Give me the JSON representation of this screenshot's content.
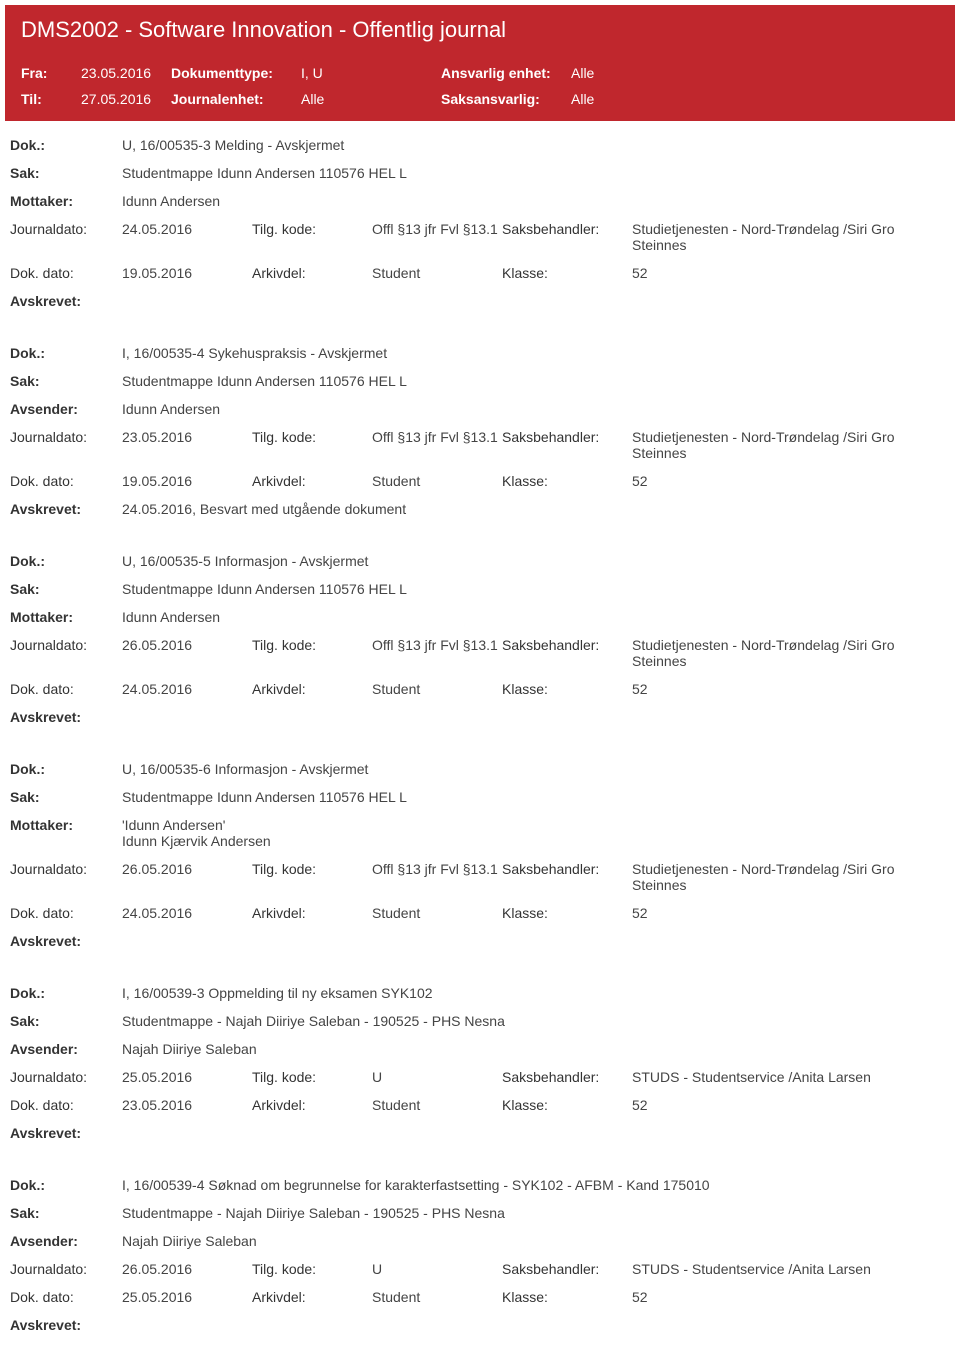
{
  "header": {
    "title": "DMS2002 - Software Innovation - Offentlig journal",
    "fra_label": "Fra:",
    "fra_value": "23.05.2016",
    "til_label": "Til:",
    "til_value": "27.05.2016",
    "dokumenttype_label": "Dokumenttype:",
    "dokumenttype_value": "I, U",
    "journalenhet_label": "Journalenhet:",
    "journalenhet_value": "Alle",
    "ansvarlig_label": "Ansvarlig enhet:",
    "ansvarlig_value": "Alle",
    "saksansvarlig_label": "Saksansvarlig:",
    "saksansvarlig_value": "Alle"
  },
  "labels": {
    "dok": "Dok.:",
    "sak": "Sak:",
    "mottaker": "Mottaker:",
    "avsender": "Avsender:",
    "journaldato": "Journaldato:",
    "dokdato": "Dok. dato:",
    "tilgkode": "Tilg. kode:",
    "arkivdel": "Arkivdel:",
    "saksbehandler": "Saksbehandler:",
    "klasse": "Klasse:",
    "avskrevet": "Avskrevet:"
  },
  "entries": [
    {
      "dok": "U, 16/00535-3 Melding - Avskjermet",
      "sak": "Studentmappe Idunn Andersen 110576 HEL L",
      "party_label": "Mottaker:",
      "party": "Idunn Andersen",
      "journaldato": "24.05.2016",
      "tilgkode": "Offl §13 jfr Fvl §13.1",
      "saksbehandler": "Studietjenesten - Nord-Trøndelag /Siri Gro Steinnes",
      "dokdato": "19.05.2016",
      "arkivdel": "Student",
      "klasse": "52",
      "avskrevet": ""
    },
    {
      "dok": "I, 16/00535-4 Sykehuspraksis - Avskjermet",
      "sak": "Studentmappe Idunn Andersen 110576 HEL L",
      "party_label": "Avsender:",
      "party": "Idunn Andersen",
      "journaldato": "23.05.2016",
      "tilgkode": "Offl §13 jfr Fvl §13.1",
      "saksbehandler": "Studietjenesten - Nord-Trøndelag /Siri Gro Steinnes",
      "dokdato": "19.05.2016",
      "arkivdel": "Student",
      "klasse": "52",
      "avskrevet": "24.05.2016, Besvart med utgående dokument"
    },
    {
      "dok": "U, 16/00535-5 Informasjon - Avskjermet",
      "sak": "Studentmappe Idunn Andersen 110576 HEL L",
      "party_label": "Mottaker:",
      "party": "Idunn Andersen",
      "journaldato": "26.05.2016",
      "tilgkode": "Offl §13 jfr Fvl §13.1",
      "saksbehandler": "Studietjenesten - Nord-Trøndelag /Siri Gro Steinnes",
      "dokdato": "24.05.2016",
      "arkivdel": "Student",
      "klasse": "52",
      "avskrevet": ""
    },
    {
      "dok": "U, 16/00535-6 Informasjon - Avskjermet",
      "sak": "Studentmappe Idunn Andersen 110576 HEL L",
      "party_label": "Mottaker:",
      "party": "'Idunn Andersen'",
      "party2": "Idunn Kjærvik Andersen",
      "journaldato": "26.05.2016",
      "tilgkode": "Offl §13 jfr Fvl §13.1",
      "saksbehandler": "Studietjenesten - Nord-Trøndelag /Siri Gro Steinnes",
      "dokdato": "24.05.2016",
      "arkivdel": "Student",
      "klasse": "52",
      "avskrevet": ""
    },
    {
      "dok": "I, 16/00539-3 Oppmelding til ny eksamen SYK102",
      "sak": "Studentmappe - Najah Diiriye Saleban - 190525 - PHS Nesna",
      "party_label": "Avsender:",
      "party": "Najah Diiriye Saleban",
      "journaldato": "25.05.2016",
      "tilgkode": "U",
      "saksbehandler": "STUDS - Studentservice /Anita Larsen",
      "dokdato": "23.05.2016",
      "arkivdel": "Student",
      "klasse": "52",
      "avskrevet": ""
    },
    {
      "dok": "I, 16/00539-4 Søknad om begrunnelse for karakterfastsetting - SYK102 - AFBM - Kand 175010",
      "sak": "Studentmappe - Najah Diiriye Saleban - 190525 - PHS Nesna",
      "party_label": "Avsender:",
      "party": "Najah Diiriye Saleban",
      "journaldato": "26.05.2016",
      "tilgkode": "U",
      "saksbehandler": "STUDS - Studentservice /Anita Larsen",
      "dokdato": "25.05.2016",
      "arkivdel": "Student",
      "klasse": "52",
      "avskrevet": ""
    }
  ]
}
